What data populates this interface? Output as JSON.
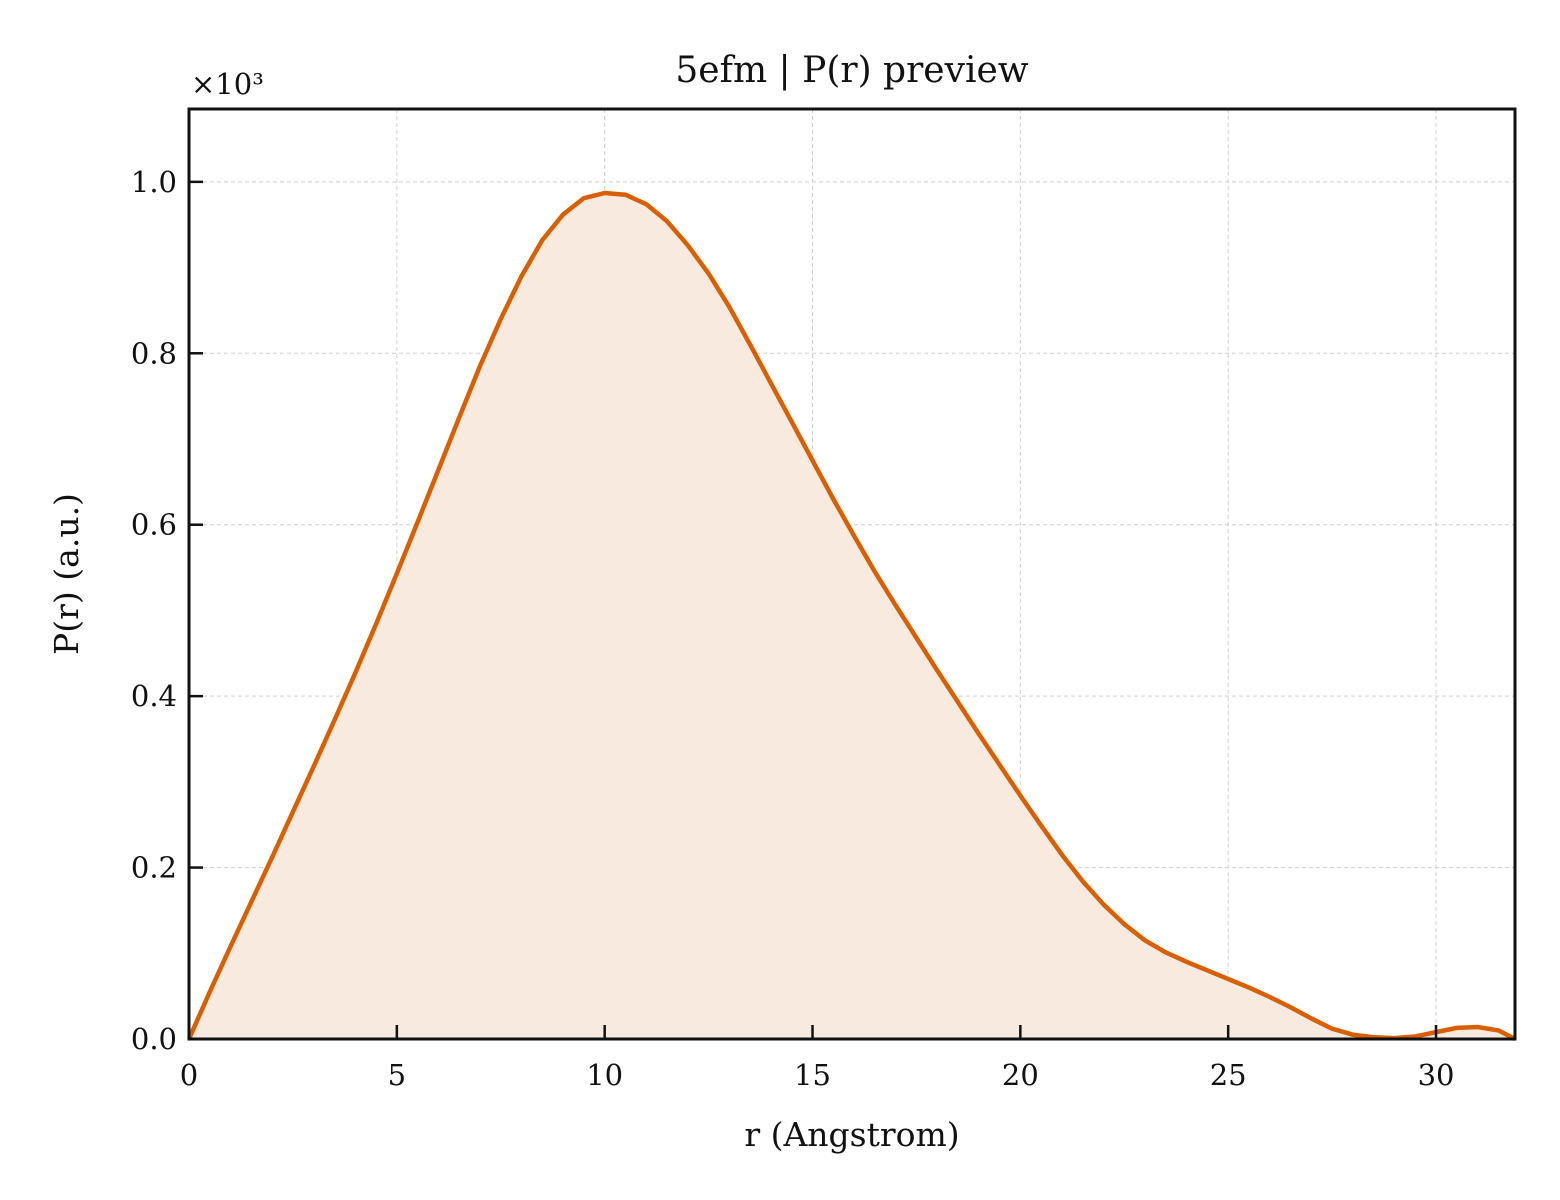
{
  "chart_data": {
    "type": "area",
    "title": "5efm | P(r) preview",
    "xlabel": "r (Angstrom)",
    "ylabel": "P(r) (a.u.)",
    "y_multiplier_label": "×10³",
    "xlim": [
      0,
      31.9
    ],
    "ylim": [
      0,
      1.085
    ],
    "x_ticks": [
      0,
      5,
      10,
      15,
      20,
      25,
      30
    ],
    "x_tick_labels": [
      "0",
      "5",
      "10",
      "15",
      "20",
      "25",
      "30"
    ],
    "y_ticks": [
      0,
      0.2,
      0.4,
      0.6,
      0.8,
      1.0
    ],
    "y_tick_labels": [
      "0.0",
      "0.2",
      "0.4",
      "0.6",
      "0.8",
      "1.0"
    ],
    "grid": true,
    "line_color": "#d95f02",
    "fill_color": "#f9eadf",
    "series": [
      {
        "x": [
          0,
          0.5,
          1,
          1.5,
          2,
          2.5,
          3,
          3.5,
          4,
          4.5,
          5,
          5.5,
          6,
          6.5,
          7,
          7.5,
          8,
          8.5,
          9,
          9.5,
          10,
          10.5,
          11,
          11.5,
          12,
          12.5,
          13,
          13.5,
          14,
          14.5,
          15,
          15.5,
          16,
          16.5,
          17,
          17.5,
          18,
          18.5,
          19,
          19.5,
          20,
          20.5,
          21,
          21.5,
          22,
          22.5,
          23,
          23.5,
          24,
          24.5,
          25,
          25.5,
          26,
          26.5,
          27,
          27.5,
          28,
          28.5,
          29,
          29.5,
          30,
          30.5,
          31,
          31.5,
          31.9
        ],
        "values": [
          0.0,
          0.055,
          0.108,
          0.16,
          0.212,
          0.265,
          0.318,
          0.372,
          0.427,
          0.484,
          0.543,
          0.603,
          0.664,
          0.725,
          0.785,
          0.84,
          0.89,
          0.932,
          0.962,
          0.981,
          0.987,
          0.985,
          0.974,
          0.954,
          0.926,
          0.893,
          0.854,
          0.81,
          0.765,
          0.72,
          0.675,
          0.63,
          0.587,
          0.545,
          0.506,
          0.468,
          0.43,
          0.393,
          0.356,
          0.32,
          0.284,
          0.249,
          0.215,
          0.184,
          0.157,
          0.134,
          0.115,
          0.101,
          0.09,
          0.08,
          0.07,
          0.06,
          0.049,
          0.037,
          0.024,
          0.012,
          0.005,
          0.002,
          0.001,
          0.003,
          0.008,
          0.013,
          0.014,
          0.01,
          0.0
        ]
      }
    ]
  }
}
